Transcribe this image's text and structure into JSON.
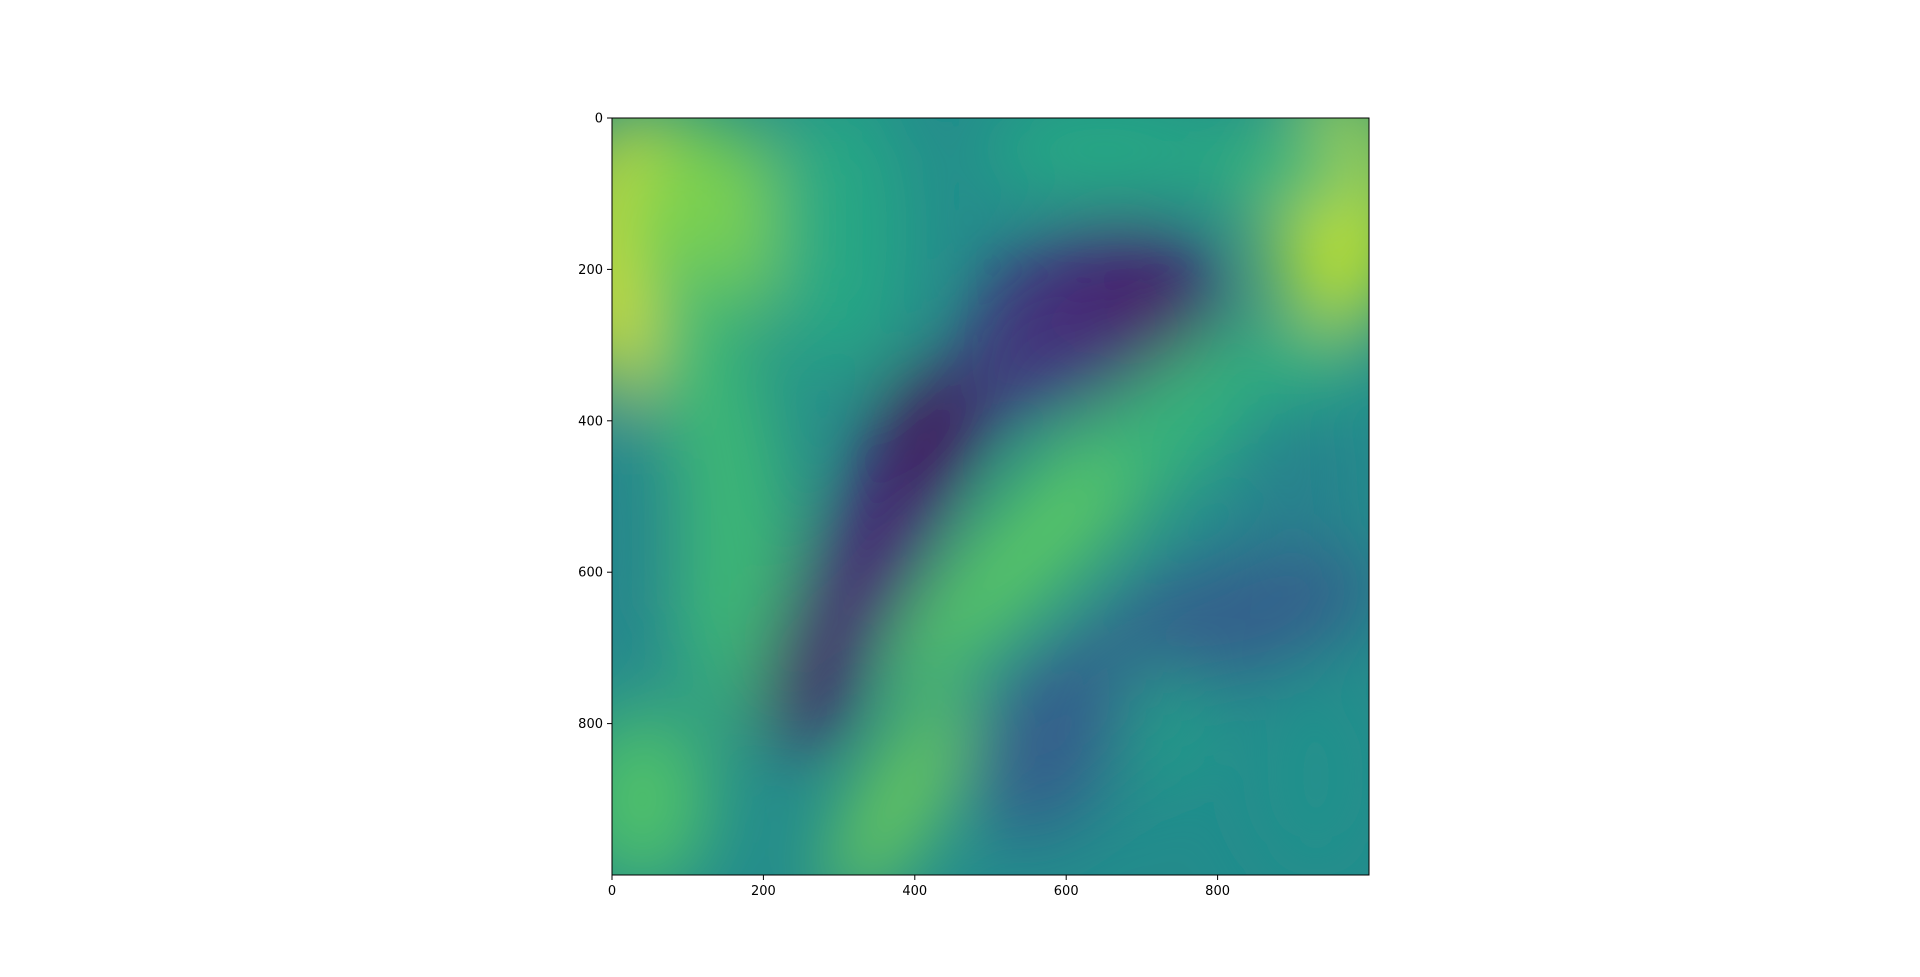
{
  "chart_data": {
    "type": "heatmap",
    "title": "",
    "xlabel": "",
    "ylabel": "",
    "colormap": "viridis",
    "grid": false,
    "xlim": [
      0,
      1000
    ],
    "ylim": [
      1000,
      0
    ],
    "x_ticks": [
      0,
      200,
      400,
      600,
      800
    ],
    "y_ticks": [
      0,
      200,
      400,
      600,
      800
    ],
    "x_tick_labels": [
      "0",
      "200",
      "400",
      "600",
      "800"
    ],
    "y_tick_labels": [
      "0",
      "200",
      "400",
      "600",
      "800"
    ],
    "image_size": [
      1000,
      1000
    ],
    "value_range_normalized": [
      0,
      1
    ],
    "features": [
      {
        "x": 30,
        "y": 150,
        "value": 0.95
      },
      {
        "x": 960,
        "y": 130,
        "value": 0.9
      },
      {
        "x": 420,
        "y": 420,
        "value": 0.02
      },
      {
        "x": 330,
        "y": 600,
        "value": 0.08
      },
      {
        "x": 700,
        "y": 230,
        "value": 0.1
      },
      {
        "x": 270,
        "y": 770,
        "value": 0.05
      },
      {
        "x": 540,
        "y": 560,
        "value": 0.75
      }
    ]
  },
  "colors": {
    "viridis_low": "#440154",
    "viridis_mid": "#21918c",
    "viridis_high": "#fde725"
  }
}
